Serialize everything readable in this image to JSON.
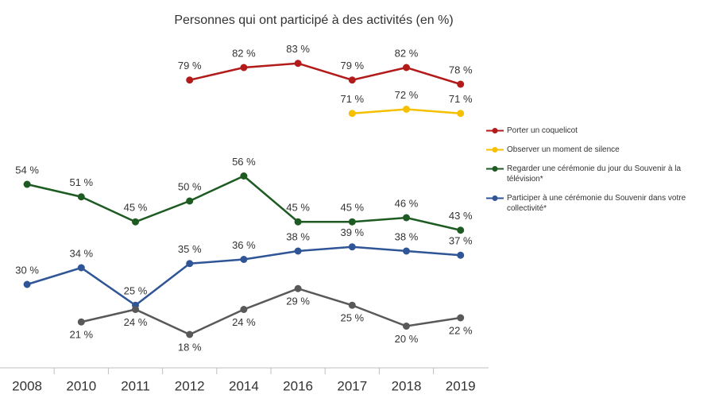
{
  "chart_data": {
    "type": "line",
    "title": "Personnes qui ont participé à des activités (en %)",
    "categories": [
      "2008",
      "2010",
      "2011",
      "2012",
      "2014",
      "2016",
      "2017",
      "2018",
      "2019"
    ],
    "series": [
      {
        "name": "Porter un coquelicot",
        "color": "#b31b1b",
        "values": [
          null,
          null,
          null,
          79,
          82,
          83,
          79,
          82,
          78
        ],
        "value_labels": [
          null,
          null,
          null,
          "79 %",
          "82 %",
          "83 %",
          "79 %",
          "82 %",
          "78 %"
        ],
        "label_side": "above"
      },
      {
        "name": "Observer un moment de silence",
        "color": "#f5c000",
        "values": [
          null,
          null,
          null,
          null,
          null,
          null,
          71,
          72,
          71
        ],
        "value_labels": [
          null,
          null,
          null,
          null,
          null,
          null,
          "71 %",
          "72 %",
          "71 %"
        ],
        "label_side": "above"
      },
      {
        "name": "Regarder une cérémonie du jour du Souvenir à la télévision*",
        "color": "#1e5b22",
        "values": [
          54,
          51,
          45,
          50,
          56,
          45,
          45,
          46,
          43
        ],
        "value_labels": [
          "54 %",
          "51 %",
          "45 %",
          "50 %",
          "56 %",
          "45 %",
          "45 %",
          "46 %",
          "43 %"
        ],
        "label_side": "above"
      },
      {
        "name": "Participer à une cérémonie du Souvenir dans votre collectivité*",
        "color": "#2f5597",
        "values": [
          30,
          34,
          25,
          35,
          36,
          38,
          39,
          38,
          37
        ],
        "value_labels": [
          "30 %",
          "34 %",
          "25 %",
          "35 %",
          "36 %",
          "38 %",
          "39 %",
          "38 %",
          "37 %"
        ],
        "label_side": "above"
      },
      {
        "color": "#595959",
        "values": [
          null,
          21,
          24,
          18,
          24,
          29,
          25,
          20,
          22
        ],
        "value_labels": [
          null,
          "21 %",
          "24 %",
          "18 %",
          "24 %",
          "29 %",
          "25 %",
          "20 %",
          "22 %"
        ],
        "label_side": "below"
      }
    ]
  }
}
